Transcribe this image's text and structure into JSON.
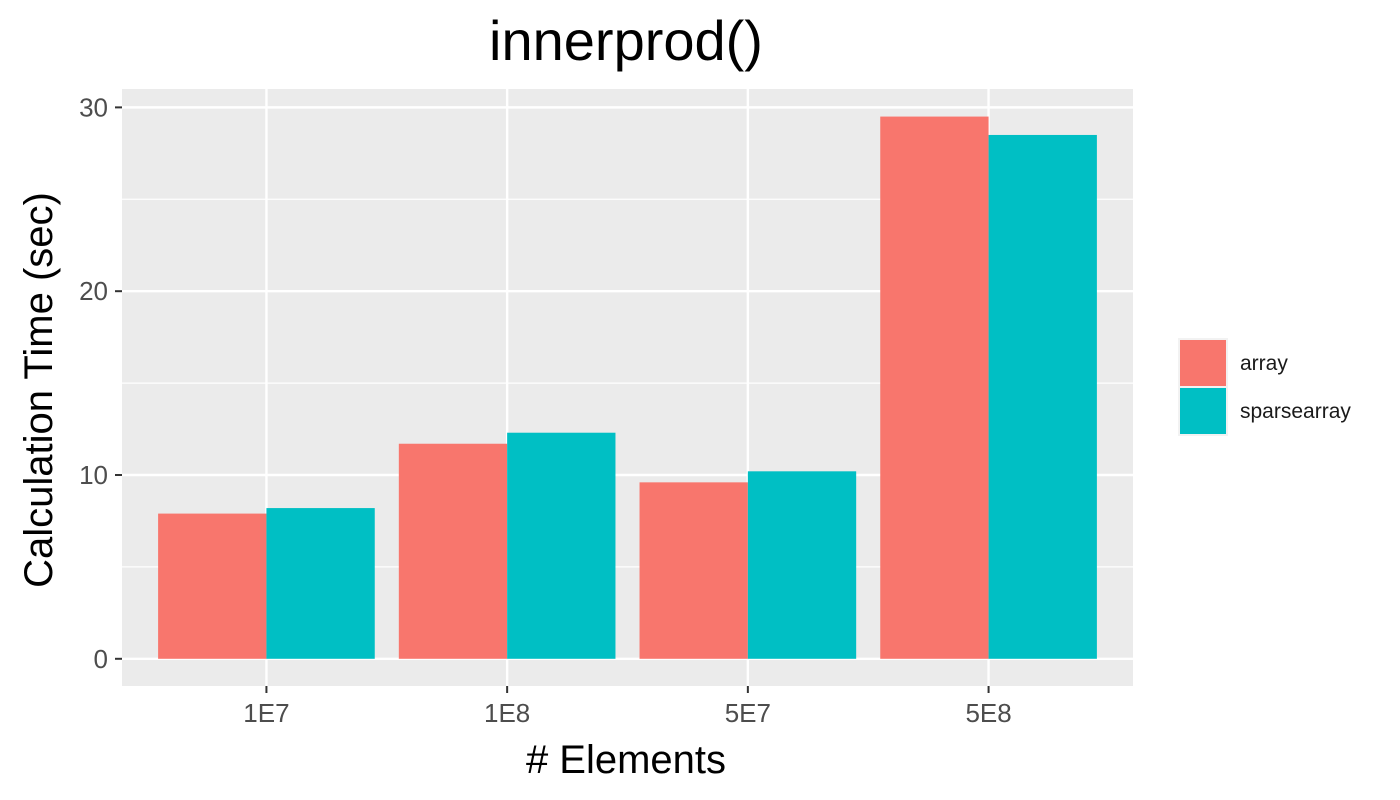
{
  "chart_data": {
    "type": "bar",
    "title": "innerprod()",
    "xlabel": "# Elements",
    "ylabel": "Calculation Time (sec)",
    "categories": [
      "1E7",
      "1E8",
      "5E7",
      "5E8"
    ],
    "series": [
      {
        "name": "array",
        "color": "#F8766D",
        "values": [
          7.9,
          11.7,
          9.6,
          29.5
        ]
      },
      {
        "name": "sparsearray",
        "color": "#00BFC4",
        "values": [
          8.2,
          12.3,
          10.2,
          28.5
        ]
      }
    ],
    "ylim": [
      -1.48,
      31.0
    ],
    "yticks": [
      0,
      10,
      20,
      30
    ],
    "grid": true,
    "legend_position": "right",
    "panel_background": "#EBEBEB"
  }
}
